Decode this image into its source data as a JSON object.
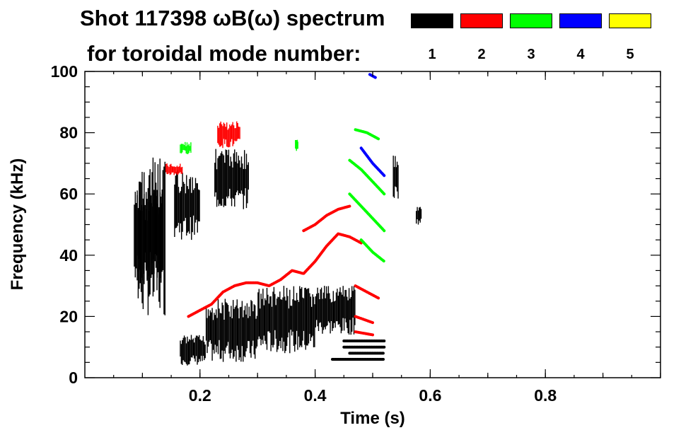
{
  "chart_data": {
    "type": "spectrogram",
    "title_line1": "Shot 117398 ωB(ω) spectrum",
    "title_line2": "for toroidal mode number:",
    "xlabel": "Time (s)",
    "ylabel": "Frequency (kHz)",
    "xlim": [
      0.0,
      1.0
    ],
    "ylim": [
      0,
      100
    ],
    "xticks": [
      {
        "value": 0.2,
        "label": "0.2"
      },
      {
        "value": 0.4,
        "label": "0.4"
      },
      {
        "value": 0.6,
        "label": "0.6"
      },
      {
        "value": 0.8,
        "label": "0.8"
      }
    ],
    "yticks": [
      {
        "value": 0,
        "label": "0"
      },
      {
        "value": 20,
        "label": "20"
      },
      {
        "value": 40,
        "label": "40"
      },
      {
        "value": 60,
        "label": "60"
      },
      {
        "value": 80,
        "label": "80"
      },
      {
        "value": 100,
        "label": "100"
      }
    ],
    "legend": [
      {
        "mode": "1",
        "color": "#000000"
      },
      {
        "mode": "2",
        "color": "#ff0000"
      },
      {
        "mode": "3",
        "color": "#00ff00"
      },
      {
        "mode": "4",
        "color": "#0000ff"
      },
      {
        "mode": "5",
        "color": "#ffff00"
      }
    ],
    "series": [
      {
        "mode": "1",
        "color": "#000000",
        "blobs": [
          {
            "t0": 0.085,
            "t1": 0.135,
            "f0": 30,
            "f1": 62
          },
          {
            "t0": 0.09,
            "t1": 0.14,
            "f0": 20,
            "f1": 72
          },
          {
            "t0": 0.165,
            "t1": 0.21,
            "f0": 4,
            "f1": 14
          },
          {
            "t0": 0.21,
            "t1": 0.3,
            "f0": 5,
            "f1": 26
          },
          {
            "t0": 0.3,
            "t1": 0.4,
            "f0": 8,
            "f1": 30
          },
          {
            "t0": 0.4,
            "t1": 0.47,
            "f0": 14,
            "f1": 30
          },
          {
            "t0": 0.155,
            "t1": 0.2,
            "f0": 45,
            "f1": 68
          },
          {
            "t0": 0.225,
            "t1": 0.285,
            "f0": 55,
            "f1": 75
          },
          {
            "t0": 0.535,
            "t1": 0.545,
            "f0": 58,
            "f1": 73
          },
          {
            "t0": 0.575,
            "t1": 0.585,
            "f0": 50,
            "f1": 56
          }
        ],
        "lines": [
          {
            "t": [
              0.45,
              0.52
            ],
            "f": [
              10,
              10
            ]
          },
          {
            "t": [
              0.46,
              0.52
            ],
            "f": [
              8,
              8
            ]
          },
          {
            "t": [
              0.43,
              0.52
            ],
            "f": [
              6,
              6
            ]
          },
          {
            "t": [
              0.45,
              0.52
            ],
            "f": [
              12,
              12
            ]
          }
        ]
      },
      {
        "mode": "2",
        "color": "#ff0000",
        "lines": [
          {
            "t": [
              0.18,
              0.2,
              0.22,
              0.24,
              0.26,
              0.28,
              0.3,
              0.32,
              0.34,
              0.36,
              0.38,
              0.4,
              0.42,
              0.44,
              0.46,
              0.48
            ],
            "f": [
              20,
              22,
              24,
              28,
              30,
              31,
              31,
              30,
              32,
              35,
              34,
              38,
              43,
              47,
              46,
              44
            ]
          },
          {
            "t": [
              0.38,
              0.4,
              0.42,
              0.44,
              0.46
            ],
            "f": [
              48,
              50,
              53,
              55,
              56
            ]
          },
          {
            "t": [
              0.47,
              0.49,
              0.51
            ],
            "f": [
              30,
              28,
              26
            ]
          },
          {
            "t": [
              0.47,
              0.5
            ],
            "f": [
              20,
              18
            ]
          },
          {
            "t": [
              0.47,
              0.5
            ],
            "f": [
              15,
              14
            ]
          }
        ],
        "blobs": [
          {
            "t0": 0.23,
            "t1": 0.27,
            "f0": 75,
            "f1": 84
          },
          {
            "t0": 0.14,
            "t1": 0.17,
            "f0": 66,
            "f1": 70
          }
        ]
      },
      {
        "mode": "3",
        "color": "#00ff00",
        "lines": [
          {
            "t": [
              0.46,
              0.48,
              0.5,
              0.52
            ],
            "f": [
              60,
              56,
              52,
              48
            ]
          },
          {
            "t": [
              0.46,
              0.48,
              0.5,
              0.52
            ],
            "f": [
              71,
              68,
              64,
              60
            ]
          },
          {
            "t": [
              0.48,
              0.5,
              0.52
            ],
            "f": [
              45,
              41,
              38
            ]
          },
          {
            "t": [
              0.47,
              0.49,
              0.51
            ],
            "f": [
              81,
              80,
              78
            ]
          }
        ],
        "blobs": [
          {
            "t0": 0.165,
            "t1": 0.185,
            "f0": 73,
            "f1": 77
          },
          {
            "t0": 0.365,
            "t1": 0.37,
            "f0": 74,
            "f1": 78
          }
        ]
      },
      {
        "mode": "4",
        "color": "#0000ff",
        "lines": [
          {
            "t": [
              0.48,
              0.5,
              0.52
            ],
            "f": [
              75,
              70,
              66
            ]
          },
          {
            "t": [
              0.495,
              0.505
            ],
            "f": [
              99,
              98
            ]
          }
        ]
      },
      {
        "mode": "5",
        "color": "#ffff00",
        "lines": []
      }
    ]
  }
}
